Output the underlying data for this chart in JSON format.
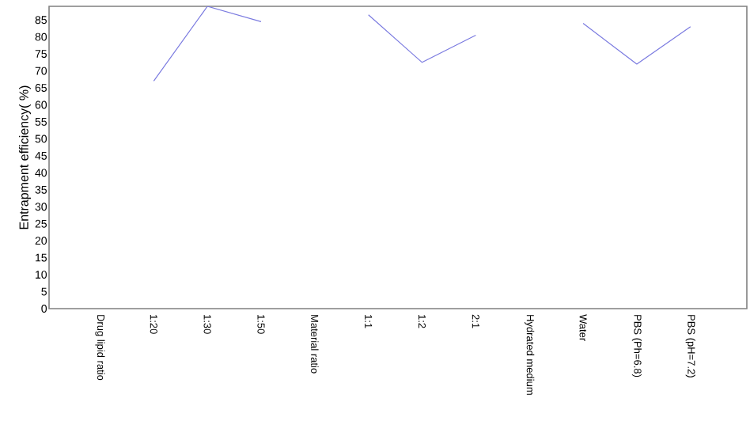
{
  "chart_data": {
    "type": "line",
    "ylabel": "Entrapment efficiency( %)",
    "categories": [
      "Drug lipid ratio",
      "1:20",
      "1:30",
      "1:50",
      "Material ratio",
      "1:1",
      "1:2",
      "2:1",
      "Hydrated medium",
      "Water",
      "PBS (Ph=6.8)",
      "PBS (pH=7.2)"
    ],
    "series": [
      {
        "color": "#7b7be0",
        "values": [
          null,
          67,
          89,
          84.5,
          null,
          86.5,
          72.5,
          80.5,
          null,
          84,
          72,
          83
        ]
      }
    ],
    "ylim": [
      0,
      89
    ],
    "yticks": [
      0,
      5,
      10,
      15,
      20,
      25,
      30,
      35,
      40,
      45,
      50,
      55,
      60,
      65,
      70,
      75,
      80,
      85
    ],
    "grid": false,
    "marker": "none",
    "line_style": "solid"
  }
}
